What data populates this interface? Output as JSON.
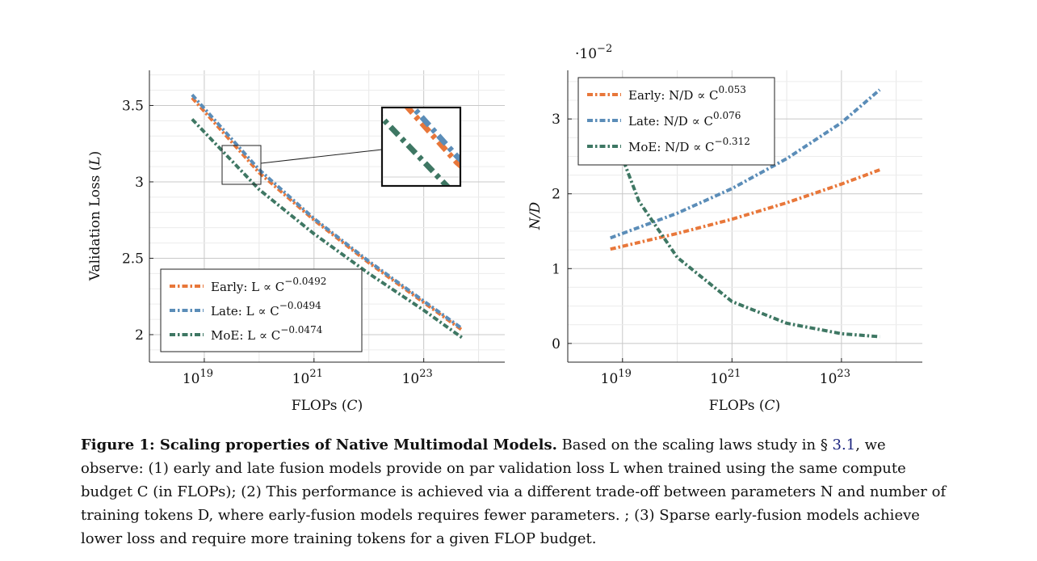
{
  "chart_data": [
    {
      "type": "line",
      "xlabel": "FLOPs (C)",
      "ylabel": "Validation Loss (L)",
      "xscale": "log",
      "xlim": [
        1e+18,
        3e+24
      ],
      "ylim": [
        1.82,
        3.73
      ],
      "xticks": [
        "10^19",
        "10^21",
        "10^23"
      ],
      "yticks": [
        "2",
        "2.5",
        "3",
        "3.5"
      ],
      "grid": true,
      "legend_position": "bottom-left",
      "inset": "zoomed view of the curves near C ≈ 10^20",
      "series": [
        {
          "name": "Early",
          "law": "L ∝ C^-0.0492",
          "color": "#e8773a",
          "x": [
            6e+18,
            1e+20,
            1e+21,
            1e+22,
            1e+23,
            5e+23
          ],
          "y": [
            3.55,
            3.06,
            2.75,
            2.47,
            2.21,
            2.03
          ]
        },
        {
          "name": "Late",
          "law": "L ∝ C^-0.0494",
          "color": "#5b8db8",
          "x": [
            6e+18,
            1e+20,
            1e+21,
            1e+22,
            1e+23,
            5e+23
          ],
          "y": [
            3.57,
            3.08,
            2.76,
            2.48,
            2.22,
            2.04
          ]
        },
        {
          "name": "MoE",
          "law": "L ∝ C^-0.0474",
          "color": "#3e7763",
          "x": [
            6e+18,
            1e+20,
            1e+21,
            1e+22,
            1e+23,
            5e+23
          ],
          "y": [
            3.41,
            2.95,
            2.66,
            2.4,
            2.16,
            1.98
          ]
        }
      ]
    },
    {
      "type": "line",
      "xlabel": "FLOPs (C)",
      "ylabel": "N/D",
      "xscale": "log",
      "xlim": [
        1e+18,
        3e+24
      ],
      "ylim": [
        -0.25,
        3.65
      ],
      "y_multiplier": "·10^-2",
      "xticks": [
        "10^19",
        "10^21",
        "10^23"
      ],
      "yticks": [
        "0",
        "1",
        "2",
        "3"
      ],
      "grid": true,
      "legend_position": "top-left",
      "series": [
        {
          "name": "Early",
          "law": "N/D ∝ C^0.053",
          "color": "#e8773a",
          "x": [
            6e+18,
            1e+20,
            1e+21,
            1e+22,
            1e+23,
            5e+23
          ],
          "y": [
            1.26,
            1.47,
            1.66,
            1.88,
            2.13,
            2.32
          ]
        },
        {
          "name": "Late",
          "law": "N/D ∝ C^0.076",
          "color": "#5b8db8",
          "x": [
            6e+18,
            1e+20,
            1e+21,
            1e+22,
            1e+23,
            5e+23
          ],
          "y": [
            1.41,
            1.74,
            2.07,
            2.47,
            2.95,
            3.39
          ]
        },
        {
          "name": "MoE",
          "law": "N/D ∝ C^-0.312",
          "color": "#3e7763",
          "x": [
            6e+18,
            2e+19,
            1e+20,
            1e+21,
            1e+22,
            1e+23,
            5e+23
          ],
          "y": [
            2.9,
            1.9,
            1.15,
            0.56,
            0.27,
            0.13,
            0.09
          ]
        }
      ]
    }
  ],
  "caption": {
    "title": "Figure 1: Scaling properties of Native Multimodal Models.",
    "text_before_ref": " Based on the scaling laws study in § ",
    "ref": "3.1",
    "text_after_ref": ", we observe: (1) early and late fusion models provide on par validation loss L when trained using the same compute budget C (in FLOPs); (2) This performance is achieved via a different trade-off between parameters N and number of training tokens D, where early-fusion models requires fewer parameters. ; (3) Sparse early-fusion models achieve lower loss and require more training tokens for a given FLOP budget."
  }
}
